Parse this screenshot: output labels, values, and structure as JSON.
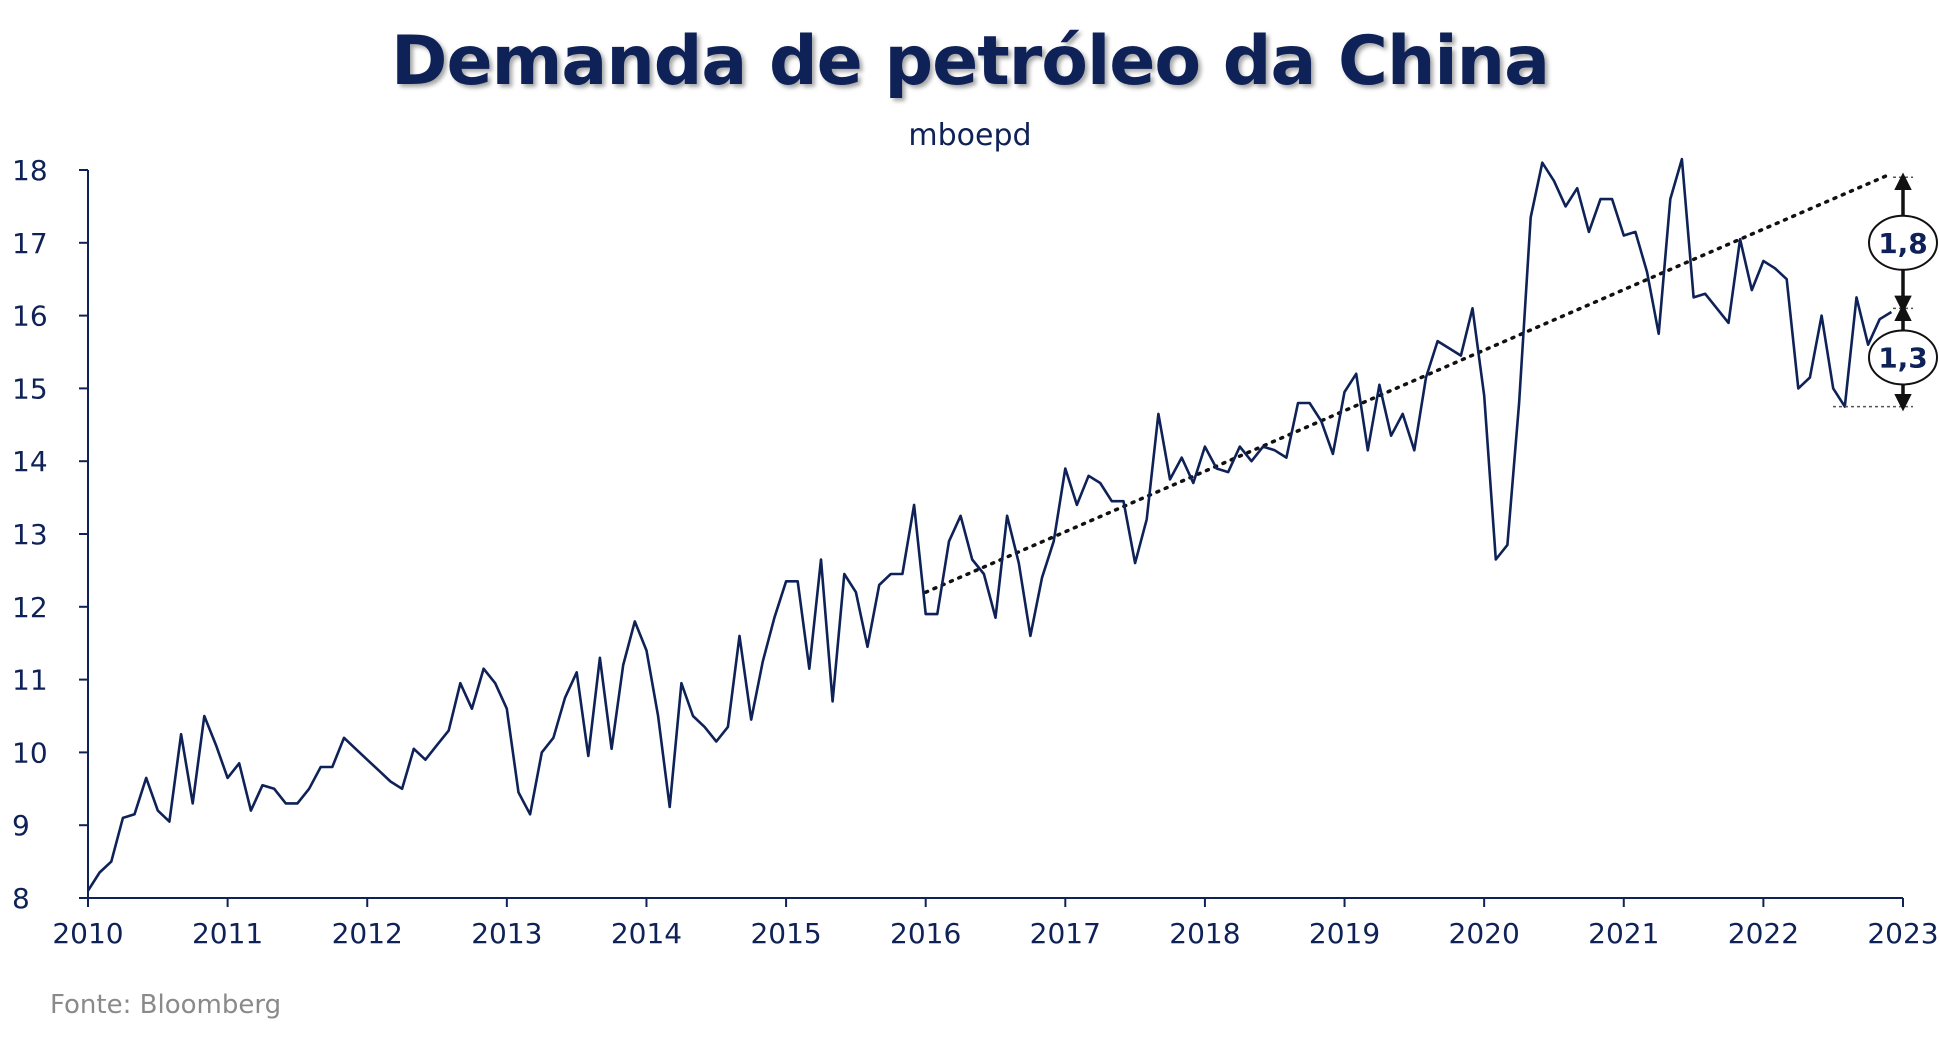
{
  "chart_data": {
    "type": "line",
    "title": "Demanda de petróleo da China",
    "subtitle": "mboepd",
    "source": "Fonte: Bloomberg",
    "xlim": [
      2010,
      2023
    ],
    "ylim": [
      8,
      18
    ],
    "x_ticks": [
      "2010",
      "2011",
      "2012",
      "2013",
      "2014",
      "2015",
      "2016",
      "2017",
      "2018",
      "2019",
      "2020",
      "2021",
      "2022",
      "2023"
    ],
    "y_ticks": [
      "8",
      "9",
      "10",
      "11",
      "12",
      "13",
      "14",
      "15",
      "16",
      "17",
      "18"
    ],
    "grid": false,
    "series": [
      {
        "color": "#0f2257",
        "start": "2010-01",
        "frequency": "monthly",
        "values": [
          8.1,
          8.35,
          8.5,
          9.1,
          9.15,
          9.65,
          9.2,
          9.05,
          10.25,
          9.3,
          10.5,
          10.1,
          9.65,
          9.85,
          9.2,
          9.55,
          9.5,
          9.3,
          9.3,
          9.5,
          9.8,
          9.8,
          10.2,
          10.05,
          9.9,
          9.75,
          9.6,
          9.5,
          10.05,
          9.9,
          10.1,
          10.3,
          10.95,
          10.6,
          11.15,
          10.95,
          10.6,
          9.45,
          9.15,
          10.0,
          10.2,
          10.75,
          11.1,
          9.95,
          11.3,
          10.05,
          11.2,
          11.8,
          11.4,
          10.5,
          9.25,
          10.95,
          10.5,
          10.35,
          10.15,
          10.35,
          11.6,
          10.45,
          11.25,
          11.85,
          12.35,
          12.35,
          11.15,
          12.65,
          10.7,
          12.45,
          12.2,
          11.45,
          12.3,
          12.45,
          12.45,
          13.4,
          11.9,
          11.9,
          12.9,
          13.25,
          12.65,
          12.45,
          11.85,
          13.25,
          12.6,
          11.6,
          12.4,
          12.9,
          13.9,
          13.4,
          13.8,
          13.7,
          13.45,
          13.45,
          12.6,
          13.2,
          14.65,
          13.75,
          14.05,
          13.7,
          14.2,
          13.9,
          13.85,
          14.2,
          14.0,
          14.2,
          14.15,
          14.05,
          14.8,
          14.8,
          14.55,
          14.1,
          14.95,
          15.2,
          14.15,
          15.05,
          14.35,
          14.65,
          14.15,
          15.15,
          15.65,
          15.55,
          15.45,
          16.1,
          14.9,
          12.65,
          12.85,
          14.8,
          17.35,
          18.1,
          17.85,
          17.5,
          17.75,
          17.15,
          17.6,
          17.6,
          17.1,
          17.15,
          16.6,
          15.75,
          17.6,
          18.15,
          16.25,
          16.3,
          16.1,
          15.9,
          17.05,
          16.35,
          16.75,
          16.65,
          16.5,
          15.0,
          15.15,
          16.0,
          15.0,
          14.75,
          16.25,
          15.6,
          15.95,
          16.05
        ]
      }
    ],
    "trend_line": {
      "style": "dotted",
      "from": {
        "x": "2016-01",
        "y": 12.2
      },
      "to": {
        "x": "2022-12",
        "y": 17.95
      }
    },
    "annotations": [
      {
        "label": "1,8",
        "y_top": 17.9,
        "y_bottom": 16.1
      },
      {
        "label": "1,3",
        "y_top": 16.1,
        "y_bottom": 14.75
      }
    ]
  }
}
